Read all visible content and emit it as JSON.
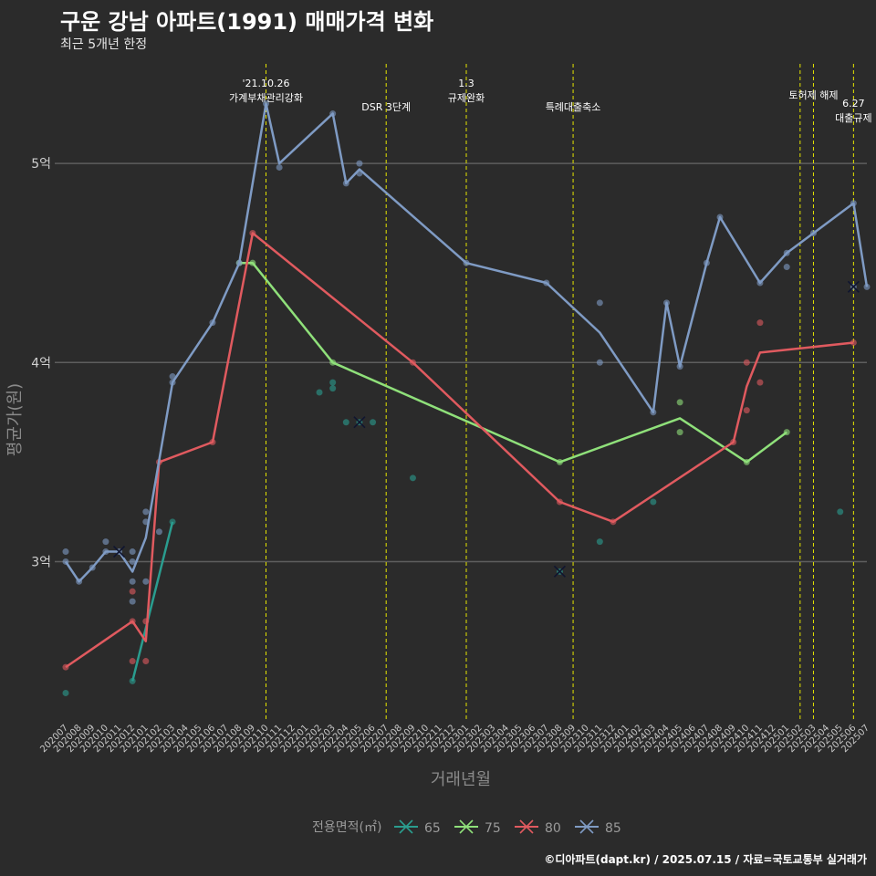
{
  "title": "구운 강남 아파트(1991) 매매가격 변화",
  "subtitle": "최근 5개년 한정",
  "caption": "©디아파트(dapt.kr) / 2025.07.15 / 자료=국토교통부 실거래가",
  "colors": {
    "background": "#2b2b2b",
    "grid": "#5e5e5e",
    "event_line": "#e5e500",
    "s65": "#2a9d8f",
    "s75": "#8fe07a",
    "s80": "#e05a5f",
    "s85": "#7f9bc4"
  },
  "chart_data": {
    "type": "line",
    "xlabel": "거래년월",
    "ylabel": "평균가(원)",
    "ylim": [
      2.2,
      5.5
    ],
    "yticks": [
      {
        "value": 3,
        "label": "3억"
      },
      {
        "value": 4,
        "label": "4억"
      },
      {
        "value": 5,
        "label": "5억"
      }
    ],
    "months": [
      "202007",
      "202008",
      "202009",
      "202010",
      "202011",
      "202012",
      "202101",
      "202102",
      "202103",
      "202104",
      "202105",
      "202106",
      "202107",
      "202108",
      "202109",
      "202110",
      "202111",
      "202112",
      "202201",
      "202202",
      "202203",
      "202204",
      "202205",
      "202206",
      "202207",
      "202208",
      "202209",
      "202210",
      "202211",
      "202212",
      "202301",
      "202302",
      "202303",
      "202304",
      "202305",
      "202306",
      "202307",
      "202308",
      "202309",
      "202310",
      "202311",
      "202312",
      "202401",
      "202402",
      "202403",
      "202404",
      "202405",
      "202406",
      "202407",
      "202408",
      "202409",
      "202410",
      "202411",
      "202412",
      "202501",
      "202502",
      "202503",
      "202504",
      "202505",
      "202506",
      "202507"
    ],
    "grid": true,
    "legend": {
      "title": "전용면적(㎡)",
      "position": "bottom"
    },
    "events": [
      {
        "month": "202110",
        "label": "'21.10.26\n가계부채관리강화",
        "row": 0
      },
      {
        "month": "202207",
        "label": "DSR 3단계",
        "row": 2
      },
      {
        "month": "202301",
        "label": "1.3\n규제완화",
        "row": 0
      },
      {
        "month": "202309",
        "label": "특례대출축소",
        "row": 2
      },
      {
        "month": "202502",
        "label": "",
        "row": 1
      },
      {
        "month": "202503",
        "label": "토허제 해제",
        "row": 1
      },
      {
        "month": "202506",
        "label": "6.27\n대출규제",
        "row": 1.7
      }
    ],
    "series": [
      {
        "name": "65",
        "color_key": "s65",
        "line": [
          [
            "202012",
            2.4
          ],
          [
            "202103",
            3.2
          ]
        ],
        "points": [
          [
            "202007",
            2.34
          ],
          [
            "202012",
            2.4
          ],
          [
            "202103",
            3.2
          ],
          [
            "202202",
            3.85
          ],
          [
            "202203",
            3.87
          ],
          [
            "202203",
            3.9
          ],
          [
            "202204",
            3.7
          ],
          [
            "202205",
            3.7
          ],
          [
            "202206",
            3.7
          ],
          [
            "202209",
            3.42
          ],
          [
            "202308",
            2.95
          ],
          [
            "202311",
            3.1
          ],
          [
            "202403",
            3.3
          ],
          [
            "202505",
            3.25
          ]
        ],
        "crosses": [
          [
            "202205",
            3.7
          ],
          [
            "202308",
            2.95
          ]
        ]
      },
      {
        "name": "75",
        "color_key": "s75",
        "line": [
          [
            "202108",
            4.5
          ],
          [
            "202109",
            4.5
          ],
          [
            "202203",
            4.0
          ],
          [
            "202308",
            3.5
          ],
          [
            "202405",
            3.72
          ],
          [
            "202410",
            3.5
          ],
          [
            "202413",
            3.65
          ]
        ],
        "points": [
          [
            "202108",
            4.5
          ],
          [
            "202109",
            4.5
          ],
          [
            "202203",
            4.0
          ],
          [
            "202308",
            3.5
          ],
          [
            "202405",
            3.8
          ],
          [
            "202405",
            3.65
          ],
          [
            "202410",
            3.5
          ],
          [
            "202413",
            3.65
          ]
        ],
        "crosses": []
      },
      {
        "name": "80",
        "color_key": "s80",
        "line": [
          [
            "202007",
            2.47
          ],
          [
            "202012",
            2.7
          ],
          [
            "202101",
            2.6
          ],
          [
            "202102",
            3.5
          ],
          [
            "202106",
            3.6
          ],
          [
            "202109",
            4.65
          ],
          [
            "202209",
            4.0
          ],
          [
            "202308",
            3.3
          ],
          [
            "202312",
            3.2
          ],
          [
            "202409",
            3.6
          ],
          [
            "202410",
            3.88
          ],
          [
            "202411",
            4.05
          ],
          [
            "202506",
            4.1
          ]
        ],
        "points": [
          [
            "202007",
            2.47
          ],
          [
            "202012",
            2.85
          ],
          [
            "202012",
            2.7
          ],
          [
            "202012",
            2.5
          ],
          [
            "202101",
            2.7
          ],
          [
            "202101",
            2.5
          ],
          [
            "202102",
            3.5
          ],
          [
            "202106",
            3.6
          ],
          [
            "202109",
            4.65
          ],
          [
            "202209",
            4.0
          ],
          [
            "202308",
            3.3
          ],
          [
            "202312",
            3.2
          ],
          [
            "202409",
            3.6
          ],
          [
            "202410",
            4.0
          ],
          [
            "202410",
            3.76
          ],
          [
            "202411",
            4.2
          ],
          [
            "202411",
            3.9
          ],
          [
            "202506",
            4.1
          ]
        ],
        "crosses": []
      },
      {
        "name": "85",
        "color_key": "s85",
        "line": [
          [
            "202007",
            3.0
          ],
          [
            "202008",
            2.9
          ],
          [
            "202009",
            2.97
          ],
          [
            "202010",
            3.05
          ],
          [
            "202011",
            3.05
          ],
          [
            "202012",
            2.95
          ],
          [
            "202101",
            3.12
          ],
          [
            "202103",
            3.9
          ],
          [
            "202106",
            4.2
          ],
          [
            "202108",
            4.5
          ],
          [
            "202110",
            5.3
          ],
          [
            "202111",
            5.0
          ],
          [
            "202203",
            5.25
          ],
          [
            "202204",
            4.9
          ],
          [
            "202205",
            4.97
          ],
          [
            "202301",
            4.5
          ],
          [
            "202307",
            4.4
          ],
          [
            "202311",
            4.15
          ],
          [
            "202403",
            3.75
          ],
          [
            "202404",
            4.3
          ],
          [
            "202405",
            3.98
          ],
          [
            "202407",
            4.5
          ],
          [
            "202408",
            4.73
          ],
          [
            "202411",
            4.4
          ],
          [
            "202501",
            4.55
          ],
          [
            "202503",
            4.65
          ],
          [
            "202506",
            4.8
          ],
          [
            "202507",
            4.38
          ]
        ],
        "points": [
          [
            "202007",
            3.05
          ],
          [
            "202007",
            3.0
          ],
          [
            "202008",
            2.9
          ],
          [
            "202009",
            2.97
          ],
          [
            "202010",
            3.1
          ],
          [
            "202010",
            3.05
          ],
          [
            "202011",
            3.05
          ],
          [
            "202012",
            3.05
          ],
          [
            "202012",
            3.0
          ],
          [
            "202012",
            2.9
          ],
          [
            "202012",
            2.8
          ],
          [
            "202101",
            3.25
          ],
          [
            "202101",
            3.2
          ],
          [
            "202101",
            2.9
          ],
          [
            "202102",
            3.15
          ],
          [
            "202103",
            3.93
          ],
          [
            "202103",
            3.9
          ],
          [
            "202106",
            4.2
          ],
          [
            "202108",
            4.5
          ],
          [
            "202110",
            5.3
          ],
          [
            "202111",
            4.98
          ],
          [
            "202203",
            5.25
          ],
          [
            "202204",
            4.9
          ],
          [
            "202205",
            5.0
          ],
          [
            "202205",
            4.95
          ],
          [
            "202301",
            4.5
          ],
          [
            "202307",
            4.4
          ],
          [
            "202311",
            4.3
          ],
          [
            "202311",
            4.0
          ],
          [
            "202403",
            3.75
          ],
          [
            "202404",
            4.3
          ],
          [
            "202405",
            3.98
          ],
          [
            "202407",
            4.5
          ],
          [
            "202408",
            4.73
          ],
          [
            "202411",
            4.4
          ],
          [
            "202501",
            4.55
          ],
          [
            "202501",
            4.48
          ],
          [
            "202503",
            4.65
          ],
          [
            "202506",
            4.8
          ],
          [
            "202506",
            4.38
          ],
          [
            "202507",
            4.38
          ]
        ],
        "crosses": [
          [
            "202011",
            3.05
          ],
          [
            "202506",
            4.38
          ]
        ]
      }
    ]
  }
}
